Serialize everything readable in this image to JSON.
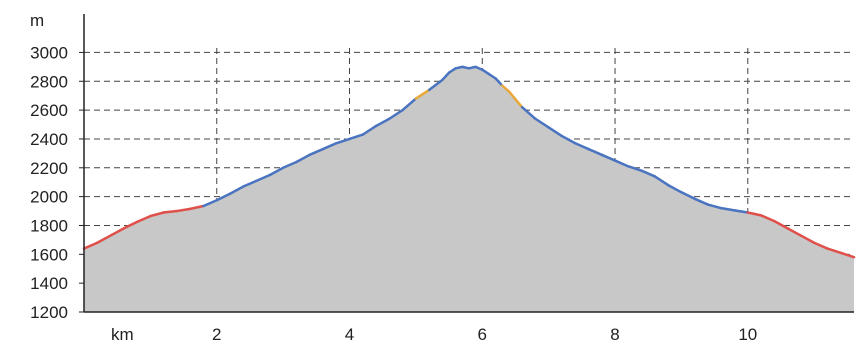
{
  "chart_data": {
    "type": "area",
    "title": "",
    "xlabel": "km",
    "ylabel": "m",
    "xlim": [
      0,
      11.6
    ],
    "ylim": [
      1200,
      3100
    ],
    "x_ticks": [
      2,
      4,
      6,
      8,
      10
    ],
    "y_ticks": [
      1200,
      1400,
      1600,
      1800,
      2000,
      2200,
      2400,
      2600,
      2800,
      3000
    ],
    "grid": true,
    "colors": {
      "fill": "#c8c8c8",
      "line": "#4a74c0",
      "steep_segments": "#e0504a",
      "moderate_segments": "#e8a83a",
      "grid": "#444444"
    },
    "series": [
      {
        "x": [
          0,
          0.2,
          0.4,
          0.6,
          0.8,
          1.0,
          1.2,
          1.4,
          1.6,
          1.8,
          2.0,
          2.2,
          2.4,
          2.6,
          2.8,
          3.0,
          3.2,
          3.4,
          3.6,
          3.8,
          4.0,
          4.2,
          4.4,
          4.6,
          4.8,
          5.0,
          5.2,
          5.4,
          5.5,
          5.6,
          5.7,
          5.8,
          5.9,
          6.0,
          6.1,
          6.2,
          6.3,
          6.4,
          6.6,
          6.8,
          7.0,
          7.2,
          7.4,
          7.6,
          7.8,
          8.0,
          8.2,
          8.4,
          8.6,
          8.8,
          9.0,
          9.2,
          9.4,
          9.6,
          9.8,
          10.0,
          10.2,
          10.4,
          10.6,
          10.8,
          11.0,
          11.2,
          11.4,
          11.6
        ],
        "y": [
          1640,
          1680,
          1730,
          1780,
          1825,
          1865,
          1890,
          1900,
          1915,
          1935,
          1975,
          2020,
          2070,
          2110,
          2150,
          2200,
          2240,
          2290,
          2330,
          2370,
          2400,
          2430,
          2490,
          2540,
          2600,
          2680,
          2740,
          2810,
          2860,
          2890,
          2900,
          2890,
          2900,
          2880,
          2850,
          2820,
          2770,
          2730,
          2620,
          2540,
          2480,
          2420,
          2370,
          2330,
          2290,
          2250,
          2210,
          2180,
          2140,
          2080,
          2030,
          1985,
          1945,
          1920,
          1905,
          1890,
          1870,
          1830,
          1780,
          1730,
          1680,
          1640,
          1610,
          1580
        ]
      }
    ],
    "steep_ranges": [
      [
        0,
        1.9
      ],
      [
        10.0,
        11.6
      ]
    ],
    "moderate_ranges": [
      [
        5.1,
        5.3
      ],
      [
        6.3,
        6.6
      ]
    ]
  }
}
